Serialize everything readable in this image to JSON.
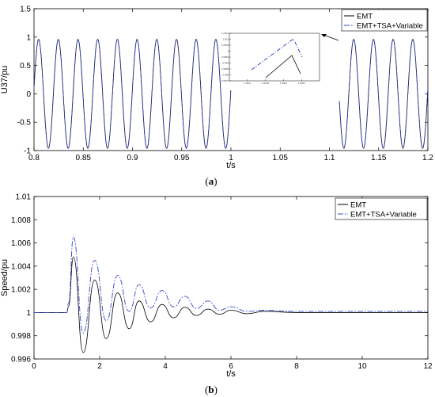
{
  "chart_data": [
    {
      "type": "line",
      "panel_label": "a",
      "xlabel": "t/s",
      "ylabel": "U37/pu",
      "xlim": [
        0.8,
        1.2
      ],
      "ylim": [
        -1,
        1.5
      ],
      "xticks": [
        "0.8",
        "0.85",
        "0.9",
        "0.95",
        "1",
        "1.05",
        "1.1",
        "1.15",
        "1.2"
      ],
      "yticks": [
        "-1",
        "-0.5",
        "0",
        "0.5",
        "1",
        "1.5"
      ],
      "grid": false,
      "legend_position": "top-right",
      "waveform": {
        "amplitude": 0.96,
        "frequency_hz": 50,
        "blank_interval": [
          1.0,
          1.11
        ]
      },
      "series": [
        {
          "name": "EMT",
          "color": "#000000",
          "style": "solid"
        },
        {
          "name": "EMT+TSA+Variable",
          "color": "#3344cc",
          "style": "dashdot"
        }
      ],
      "inset": {
        "xticks": [
          "1.0001",
          "1.0002",
          "1.0003",
          "1.0004"
        ],
        "yticks": [
          "0.9975",
          "0.998",
          "0.9985",
          "0.999",
          "0.9995",
          "1",
          "1.0005",
          "1.001",
          "1.0015"
        ]
      }
    },
    {
      "type": "line",
      "panel_label": "b",
      "xlabel": "t/s",
      "ylabel": "Speed/pu",
      "xlim": [
        0,
        12
      ],
      "ylim": [
        0.996,
        1.01
      ],
      "xticks": [
        "0",
        "2",
        "4",
        "6",
        "8",
        "10",
        "12"
      ],
      "yticks": [
        "0.996",
        "0.998",
        "1",
        "1.002",
        "1.004",
        "1.006",
        "1.008",
        "1.01"
      ],
      "grid": false,
      "legend_position": "top-right",
      "series": [
        {
          "name": "EMT",
          "color": "#000000",
          "style": "solid",
          "x": [
            0,
            1,
            1.05,
            1.2,
            1.5,
            1.85,
            2.2,
            2.55,
            2.9,
            3.2,
            3.55,
            3.9,
            4.25,
            4.6,
            4.95,
            5.3,
            5.65,
            6.0,
            6.5,
            7.0,
            8.0,
            9.0,
            10.0,
            11.0,
            12.0
          ],
          "y": [
            1,
            1,
            1.0005,
            1.0048,
            0.99655,
            1.0028,
            0.99775,
            1.0017,
            0.9986,
            1.001,
            0.9992,
            1.0007,
            0.99955,
            1.00045,
            0.99975,
            1.0003,
            0.99985,
            1.0002,
            0.9999,
            1.0001,
            1,
            1,
            1,
            1,
            1
          ]
        },
        {
          "name": "EMT+TSA+Variable",
          "color": "#3344cc",
          "style": "dashdot",
          "x": [
            0,
            1,
            1.05,
            1.2,
            1.5,
            1.85,
            2.2,
            2.55,
            2.9,
            3.2,
            3.55,
            3.9,
            4.25,
            4.6,
            4.95,
            5.3,
            5.65,
            6.0,
            6.5,
            7.0,
            8.0,
            9.0,
            10.0,
            11.0,
            12.0
          ],
          "y": [
            1,
            1,
            1.0008,
            1.0065,
            0.99825,
            1.0045,
            0.9993,
            1.0032,
            1.0001,
            1.0024,
            1.0004,
            1.0019,
            1.0005,
            1.0014,
            1.00035,
            1.001,
            1.0002,
            1.0005,
            1.0001,
            1.0002,
            1.0001,
            1.0001,
            1.0001,
            1.0001,
            1.0001
          ]
        }
      ]
    }
  ]
}
